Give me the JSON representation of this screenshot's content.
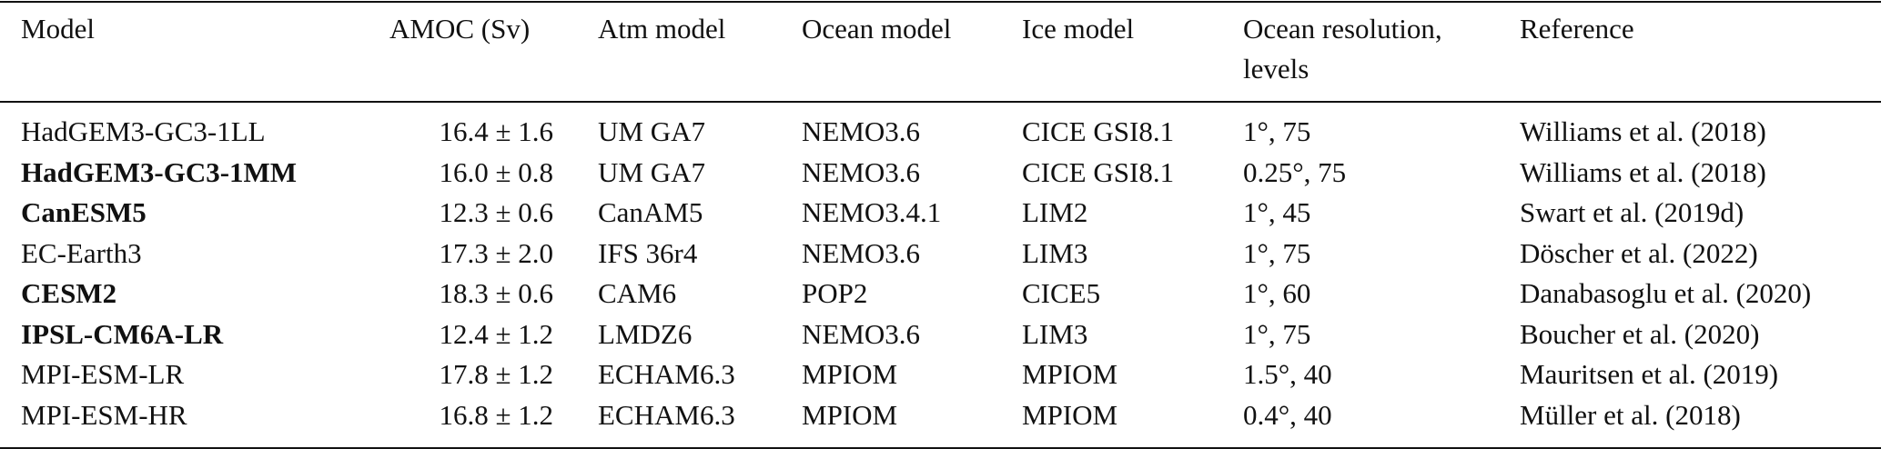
{
  "columns": {
    "model": "Model",
    "amoc": "AMOC (Sv)",
    "atm": "Atm model",
    "ocean": "Ocean model",
    "ice": "Ice model",
    "resolution_line1": "Ocean resolution,",
    "resolution_line2": "levels",
    "reference": "Reference"
  },
  "rows": [
    {
      "model": "HadGEM3-GC3-1LL",
      "bold": false,
      "amoc": "16.4 ± 1.6",
      "atm": "UM GA7",
      "ocean": "NEMO3.6",
      "ice": "CICE GSI8.1",
      "resolution": "1°, 75",
      "reference": "Williams et al. (2018)"
    },
    {
      "model": "HadGEM3-GC3-1MM",
      "bold": true,
      "amoc": "16.0 ± 0.8",
      "atm": "UM GA7",
      "ocean": "NEMO3.6",
      "ice": "CICE GSI8.1",
      "resolution": "0.25°, 75",
      "reference": "Williams et al. (2018)"
    },
    {
      "model": "CanESM5",
      "bold": true,
      "amoc": "12.3 ± 0.6",
      "atm": "CanAM5",
      "ocean": "NEMO3.4.1",
      "ice": "LIM2",
      "resolution": "1°, 45",
      "reference": "Swart et al. (2019d)"
    },
    {
      "model": "EC-Earth3",
      "bold": false,
      "amoc": "17.3 ± 2.0",
      "atm": "IFS 36r4",
      "ocean": "NEMO3.6",
      "ice": "LIM3",
      "resolution": "1°, 75",
      "reference": "Döscher et al. (2022)"
    },
    {
      "model": "CESM2",
      "bold": true,
      "amoc": "18.3 ± 0.6",
      "atm": "CAM6",
      "ocean": "POP2",
      "ice": "CICE5",
      "resolution": "1°, 60",
      "reference": "Danabasoglu et al. (2020)"
    },
    {
      "model": "IPSL-CM6A-LR",
      "bold": true,
      "amoc": "12.4 ± 1.2",
      "atm": "LMDZ6",
      "ocean": "NEMO3.6",
      "ice": "LIM3",
      "resolution": "1°, 75",
      "reference": "Boucher et al. (2020)"
    },
    {
      "model": "MPI-ESM-LR",
      "bold": false,
      "amoc": "17.8 ± 1.2",
      "atm": "ECHAM6.3",
      "ocean": "MPIOM",
      "ice": "MPIOM",
      "resolution": "1.5°, 40",
      "reference": "Mauritsen et al. (2019)"
    },
    {
      "model": "MPI-ESM-HR",
      "bold": false,
      "amoc": "16.8 ± 1.2",
      "atm": "ECHAM6.3",
      "ocean": "MPIOM",
      "ice": "MPIOM",
      "resolution": "0.4°, 40",
      "reference": "Müller et al. (2018)"
    }
  ]
}
